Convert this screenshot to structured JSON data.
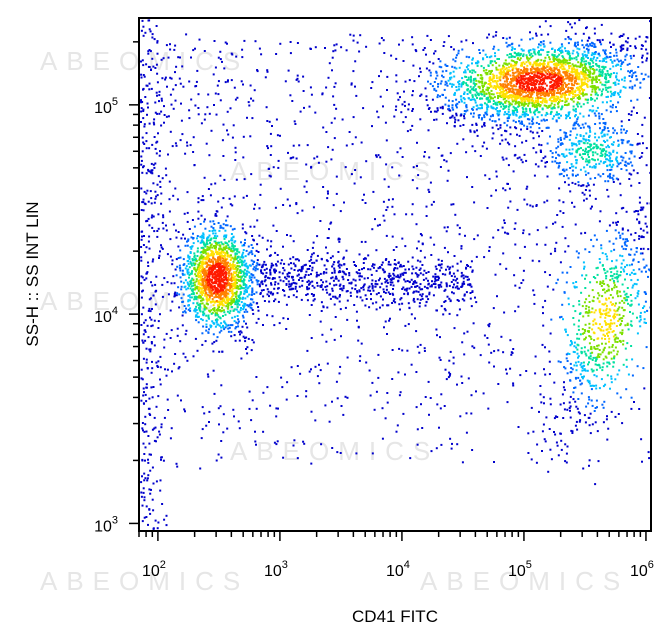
{
  "chart_data": {
    "type": "scatter",
    "subtype": "flow-cytometry-density-dot-plot",
    "title": "",
    "xlabel": "CD41 FITC",
    "ylabel": "SS-H :: SS INT LIN",
    "x_scale": "log",
    "y_scale": "log",
    "xlim": [
      70,
      1100000
    ],
    "ylim": [
      920,
      260000
    ],
    "x_ticks": [
      {
        "value": 100,
        "base": "10",
        "exp": "2"
      },
      {
        "value": 1000,
        "base": "10",
        "exp": "3"
      },
      {
        "value": 10000,
        "base": "10",
        "exp": "4"
      },
      {
        "value": 100000,
        "base": "10",
        "exp": "5"
      },
      {
        "value": 1000000,
        "base": "10",
        "exp": "6"
      }
    ],
    "y_ticks": [
      {
        "value": 1000,
        "base": "10",
        "exp": "3"
      },
      {
        "value": 10000,
        "base": "10",
        "exp": "4"
      },
      {
        "value": 100000,
        "base": "10",
        "exp": "5"
      }
    ],
    "grid": false,
    "legend": "none",
    "color_scale": [
      "#0000cc",
      "#0066ff",
      "#00c0ff",
      "#00e0a0",
      "#7de000",
      "#ffe000",
      "#ff8000",
      "#ff1a00"
    ],
    "populations": [
      {
        "center": [
          300,
          15000
        ],
        "spread_log10": [
          0.14,
          0.12
        ],
        "peak_density": 1.0
      },
      {
        "center": [
          130000,
          130000
        ],
        "spread_log10": [
          0.38,
          0.09
        ],
        "peak_density": 0.95
      },
      {
        "center": [
          450000,
          9500
        ],
        "spread_log10": [
          0.2,
          0.2
        ],
        "peak_density": 0.6
      },
      {
        "center": [
          350000,
          60000
        ],
        "spread_log10": [
          0.2,
          0.08
        ],
        "peak_density": 0.3
      }
    ],
    "watermark": "ABEOMICS"
  }
}
